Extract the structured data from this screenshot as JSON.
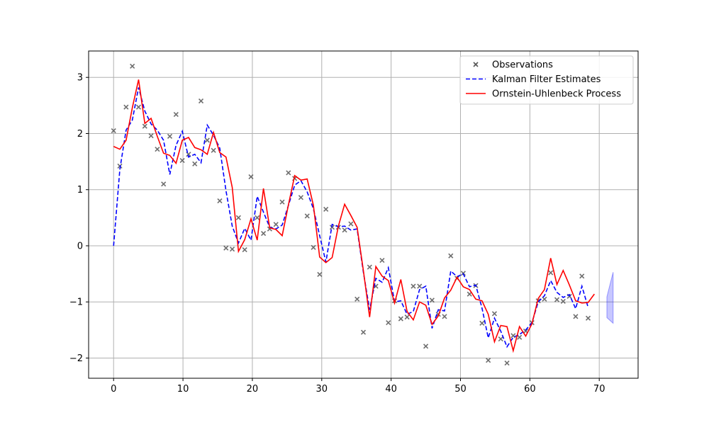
{
  "chart_data": {
    "type": "line",
    "title": "",
    "xlabel": "",
    "ylabel": "",
    "xlim": [
      -3.6,
      75.6
    ],
    "ylim": [
      -2.36,
      3.47
    ],
    "xticks": [
      0,
      10,
      20,
      30,
      40,
      50,
      60,
      70
    ],
    "yticks": [
      -2,
      -1,
      0,
      1,
      2,
      3
    ],
    "grid": true,
    "legend_position": "top-right",
    "colors": {
      "observations": "#555555",
      "kalman": "#0000ff",
      "ou": "#ff0000",
      "band": "#0000ff"
    },
    "x_step": 0.9,
    "observations": [
      2.05,
      1.42,
      2.47,
      3.2,
      2.47,
      2.13,
      1.96,
      1.72,
      1.1,
      1.95,
      2.34,
      1.52,
      1.63,
      1.46,
      2.58,
      1.88,
      1.7,
      0.8,
      -0.04,
      -0.06,
      0.5,
      -0.07,
      1.23,
      0.5,
      0.22,
      0.3,
      0.38,
      0.78,
      1.3,
      1.2,
      0.86,
      0.53,
      -0.03,
      -0.51,
      0.65,
      0.33,
      0.33,
      0.28,
      0.39,
      -0.95,
      -1.54,
      -0.38,
      -0.72,
      -0.26,
      -1.37,
      -0.98,
      -1.3,
      -1.27,
      -0.72,
      -0.72,
      -1.79,
      -0.97,
      -1.22,
      -1.26,
      -0.18,
      -0.58,
      -0.49,
      -0.86,
      -0.71,
      -1.38,
      -2.04,
      -1.21,
      -1.66,
      -2.09,
      -1.6,
      -1.63,
      -1.52,
      -1.37,
      -0.98,
      -0.95,
      -0.48,
      -0.96,
      -0.99,
      -0.9,
      -1.26,
      -0.54,
      -1.29
    ],
    "kalman_estimates": [
      0.0,
      1.36,
      2.06,
      2.24,
      2.82,
      2.4,
      2.17,
      2.06,
      1.88,
      1.27,
      1.79,
      2.04,
      1.58,
      1.63,
      1.48,
      2.15,
      1.97,
      1.74,
      0.98,
      0.35,
      0.05,
      0.31,
      0.1,
      0.88,
      0.6,
      0.33,
      0.3,
      0.37,
      0.72,
      1.08,
      1.16,
      0.96,
      0.66,
      0.18,
      -0.29,
      0.38,
      0.34,
      0.35,
      0.28,
      0.3,
      -0.47,
      -1.14,
      -0.58,
      -0.65,
      -0.39,
      -1.0,
      -0.98,
      -1.22,
      -1.17,
      -0.78,
      -0.72,
      -1.47,
      -1.14,
      -1.16,
      -0.45,
      -0.55,
      -0.5,
      -0.73,
      -0.7,
      -1.11,
      -1.64,
      -1.29,
      -1.52,
      -1.8,
      -1.63,
      -1.58,
      -1.5,
      -1.37,
      -1.0,
      -0.89,
      -0.62,
      -0.83,
      -0.92,
      -0.87,
      -1.12,
      -0.72,
      -1.1
    ],
    "ou_process": [
      1.77,
      1.72,
      1.88,
      2.46,
      2.96,
      2.18,
      2.27,
      1.95,
      1.65,
      1.61,
      1.47,
      1.88,
      1.93,
      1.75,
      1.71,
      1.63,
      2.02,
      1.66,
      1.58,
      1.04,
      -0.1,
      0.11,
      0.48,
      0.1,
      1.02,
      0.32,
      0.29,
      0.18,
      0.73,
      1.25,
      1.17,
      1.19,
      0.72,
      -0.2,
      -0.3,
      -0.21,
      0.35,
      0.74,
      0.54,
      0.33,
      -0.44,
      -1.27,
      -0.37,
      -0.54,
      -0.62,
      -1.02,
      -0.6,
      -1.17,
      -1.32,
      -1.0,
      -1.06,
      -1.4,
      -1.25,
      -0.93,
      -0.79,
      -0.56,
      -0.73,
      -0.78,
      -0.95,
      -0.98,
      -1.22,
      -1.71,
      -1.42,
      -1.44,
      -1.87,
      -1.44,
      -1.61,
      -1.39,
      -0.94,
      -0.78,
      -0.22,
      -0.69,
      -0.44,
      -0.7,
      -0.98,
      -1.02,
      -1.01,
      -0.86
    ],
    "uncertainty_band": {
      "x": [
        71.1,
        72.0
      ],
      "upper": [
        -0.91,
        -0.47
      ],
      "lower": [
        -1.28,
        -1.38
      ]
    },
    "legend": [
      {
        "label": "Observations",
        "style": "marker-x",
        "color": "#555555"
      },
      {
        "label": "Kalman Filter Estimates",
        "style": "dashed",
        "color": "#0000ff"
      },
      {
        "label": "Ornstein-Uhlenbeck Process",
        "style": "solid",
        "color": "#ff0000"
      }
    ]
  }
}
